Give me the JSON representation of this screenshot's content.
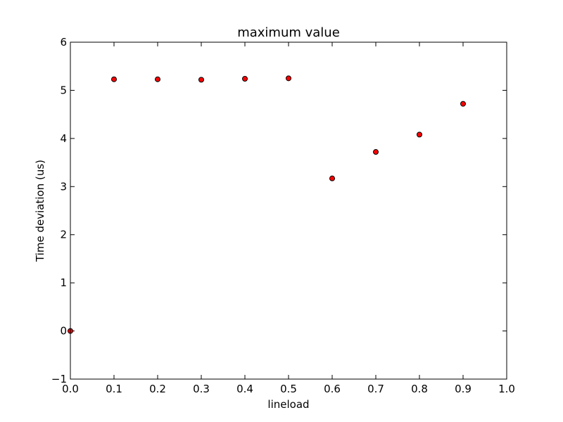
{
  "chart_data": {
    "type": "scatter",
    "title": "maximum value",
    "xlabel": "lineload",
    "ylabel": "Time deviation (us)",
    "xlim": [
      0.0,
      1.0
    ],
    "ylim": [
      -1,
      6
    ],
    "x_ticks": [
      "0.0",
      "0.1",
      "0.2",
      "0.3",
      "0.4",
      "0.5",
      "0.6",
      "0.7",
      "0.8",
      "0.9",
      "1.0"
    ],
    "y_ticks": [
      "−1",
      "0",
      "1",
      "2",
      "3",
      "4",
      "5",
      "6"
    ],
    "grid": false,
    "legend": "none",
    "series": [
      {
        "marker_color": "#ff0000",
        "edge_color": "#000000",
        "points": [
          {
            "x": 0.0,
            "y": 0.0
          },
          {
            "x": 0.1,
            "y": 5.23
          },
          {
            "x": 0.2,
            "y": 5.23
          },
          {
            "x": 0.3,
            "y": 5.22
          },
          {
            "x": 0.4,
            "y": 5.24
          },
          {
            "x": 0.5,
            "y": 5.25
          },
          {
            "x": 0.6,
            "y": 3.17
          },
          {
            "x": 0.7,
            "y": 3.72
          },
          {
            "x": 0.8,
            "y": 4.08
          },
          {
            "x": 0.9,
            "y": 4.72
          }
        ]
      }
    ]
  }
}
